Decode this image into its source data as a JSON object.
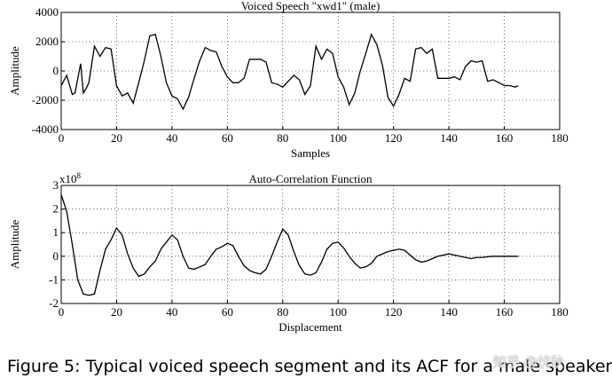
{
  "chart_data": [
    {
      "type": "line",
      "title": "Voiced Speech \"xwd1\" (male)",
      "xlabel": "Samples",
      "ylabel": "Amplitude",
      "xlim": [
        0,
        180
      ],
      "ylim": [
        -4000,
        4000
      ],
      "xticks": [
        0,
        20,
        40,
        60,
        80,
        100,
        120,
        140,
        160,
        180
      ],
      "yticks": [
        -4000,
        -2000,
        0,
        2000,
        4000
      ],
      "grid": "dotted",
      "series": [
        {
          "x": [
            0,
            2,
            4,
            5,
            7,
            8,
            9,
            10,
            12,
            14,
            16,
            18,
            20,
            22,
            24,
            26,
            28,
            30,
            32,
            34,
            36,
            38,
            40,
            42,
            44,
            46,
            48,
            50,
            52,
            54,
            56,
            58,
            60,
            62,
            64,
            66,
            68,
            70,
            72,
            74,
            76,
            78,
            80,
            82,
            84,
            86,
            88,
            90,
            92,
            94,
            96,
            98,
            100,
            102,
            104,
            106,
            108,
            110,
            112,
            114,
            116,
            118,
            120,
            122,
            124,
            126,
            128,
            130,
            132,
            134,
            136,
            138,
            140,
            142,
            144,
            146,
            148,
            150,
            152,
            154,
            156,
            158,
            160,
            162,
            164,
            165
          ],
          "y": [
            -1000,
            -300,
            -1600,
            -1500,
            500,
            -1500,
            -1200,
            -800,
            1700,
            1000,
            1600,
            1500,
            -1000,
            -1700,
            -1500,
            -2200,
            -800,
            700,
            2400,
            2500,
            1000,
            -800,
            -1700,
            -1900,
            -2600,
            -1800,
            -500,
            700,
            1600,
            1400,
            1300,
            300,
            -400,
            -800,
            -800,
            -500,
            800,
            800,
            800,
            600,
            -800,
            -900,
            -1100,
            -700,
            -300,
            -600,
            -1600,
            -1000,
            1700,
            800,
            1500,
            1200,
            -400,
            -1100,
            -2300,
            -1500,
            0,
            1200,
            2500,
            1800,
            400,
            -1800,
            -2400,
            -1600,
            -500,
            -700,
            1500,
            1600,
            1200,
            1500,
            -500,
            -500,
            -500,
            -400,
            -600,
            300,
            700,
            600,
            700,
            -700,
            -600,
            -800,
            -1000,
            -1000,
            -1100,
            -1000
          ]
        }
      ]
    },
    {
      "type": "line",
      "title": "Auto-Correlation Function",
      "xlabel": "Displacement",
      "ylabel": "Amplitude",
      "multiplier": "x10",
      "multiplier_exp": "8",
      "xlim": [
        0,
        180
      ],
      "ylim": [
        -2,
        3
      ],
      "xticks": [
        0,
        20,
        40,
        60,
        80,
        100,
        120,
        140,
        160,
        180
      ],
      "yticks": [
        -2,
        -1,
        0,
        1,
        2,
        3
      ],
      "grid": "dotted",
      "series": [
        {
          "x": [
            0,
            2,
            4,
            6,
            8,
            10,
            12,
            14,
            16,
            18,
            20,
            22,
            24,
            26,
            28,
            30,
            32,
            34,
            36,
            38,
            40,
            42,
            44,
            46,
            48,
            50,
            52,
            54,
            56,
            58,
            60,
            62,
            64,
            66,
            68,
            70,
            72,
            74,
            76,
            78,
            80,
            82,
            84,
            86,
            88,
            90,
            92,
            94,
            96,
            98,
            100,
            102,
            104,
            106,
            108,
            110,
            112,
            114,
            116,
            118,
            120,
            122,
            124,
            126,
            128,
            130,
            132,
            134,
            136,
            138,
            140,
            142,
            144,
            146,
            148,
            150,
            152,
            154,
            156,
            158,
            160,
            162,
            165
          ],
          "y": [
            2.6,
            1.9,
            0.5,
            -1.0,
            -1.6,
            -1.65,
            -1.6,
            -0.6,
            0.3,
            0.7,
            1.2,
            0.9,
            0.1,
            -0.5,
            -0.85,
            -0.75,
            -0.45,
            -0.2,
            0.3,
            0.6,
            0.9,
            0.7,
            0.0,
            -0.5,
            -0.55,
            -0.45,
            -0.35,
            0.0,
            0.3,
            0.4,
            0.55,
            0.45,
            0.0,
            -0.4,
            -0.6,
            -0.7,
            -0.75,
            -0.55,
            0.0,
            0.6,
            1.15,
            0.9,
            0.2,
            -0.4,
            -0.75,
            -0.8,
            -0.7,
            -0.25,
            0.3,
            0.55,
            0.6,
            0.35,
            0.0,
            -0.3,
            -0.5,
            -0.45,
            -0.3,
            0.0,
            0.1,
            0.2,
            0.25,
            0.3,
            0.25,
            0.05,
            -0.15,
            -0.25,
            -0.2,
            -0.1,
            0.0,
            0.05,
            0.1,
            0.05,
            0.0,
            -0.05,
            -0.1,
            -0.05,
            -0.05,
            -0.02,
            0.0,
            0.0,
            0.0,
            0.0,
            0.0
          ]
        }
      ]
    }
  ],
  "caption": "Figure 5:  Typical voiced speech segment and its ACF for a male speaker",
  "watermark": "知乎 @伏秋"
}
